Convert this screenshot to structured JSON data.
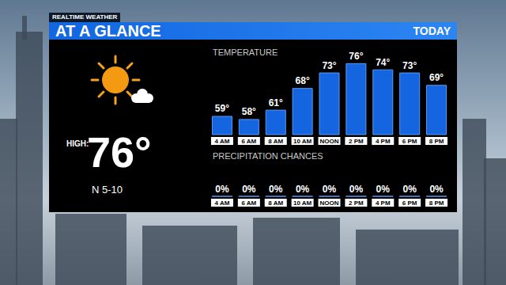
{
  "header": {
    "brand": "REALTIME WEATHER",
    "title": "AT A GLANCE",
    "period": "TODAY"
  },
  "summary": {
    "high_label": "HIGH:",
    "high": "76°",
    "wind": "N 5-10"
  },
  "chart_data": [
    {
      "type": "bar",
      "title": "TEMPERATURE",
      "categories": [
        "4 AM",
        "6 AM",
        "8 AM",
        "10 AM",
        "NOON",
        "2 PM",
        "4 PM",
        "6 PM",
        "8 PM"
      ],
      "values": [
        59,
        58,
        61,
        68,
        73,
        76,
        74,
        73,
        69
      ],
      "value_labels": [
        "59°",
        "58°",
        "61°",
        "68°",
        "73°",
        "76°",
        "74°",
        "73°",
        "69°"
      ],
      "data_labels": true,
      "color": "#1565e0",
      "ylim": [
        53,
        78
      ],
      "yticks": [
        53,
        78
      ],
      "grid": false,
      "tick_labels": "x"
    },
    {
      "type": "bar",
      "title": "PRECIPITATION CHANCES",
      "categories": [
        "4 AM",
        "6 AM",
        "8 AM",
        "10 AM",
        "NOON",
        "2 PM",
        "4 PM",
        "6 PM",
        "8 PM"
      ],
      "values": [
        0,
        0,
        0,
        0,
        0,
        0,
        0,
        0,
        0
      ],
      "value_labels": [
        "0%",
        "0%",
        "0%",
        "0%",
        "0%",
        "0%",
        "0%",
        "0%",
        "0%"
      ],
      "data_labels": true,
      "color": "#1565e0",
      "ylim": [
        0,
        100
      ],
      "yticks": [
        0,
        100
      ],
      "grid": false,
      "tick_labels": "x"
    }
  ]
}
